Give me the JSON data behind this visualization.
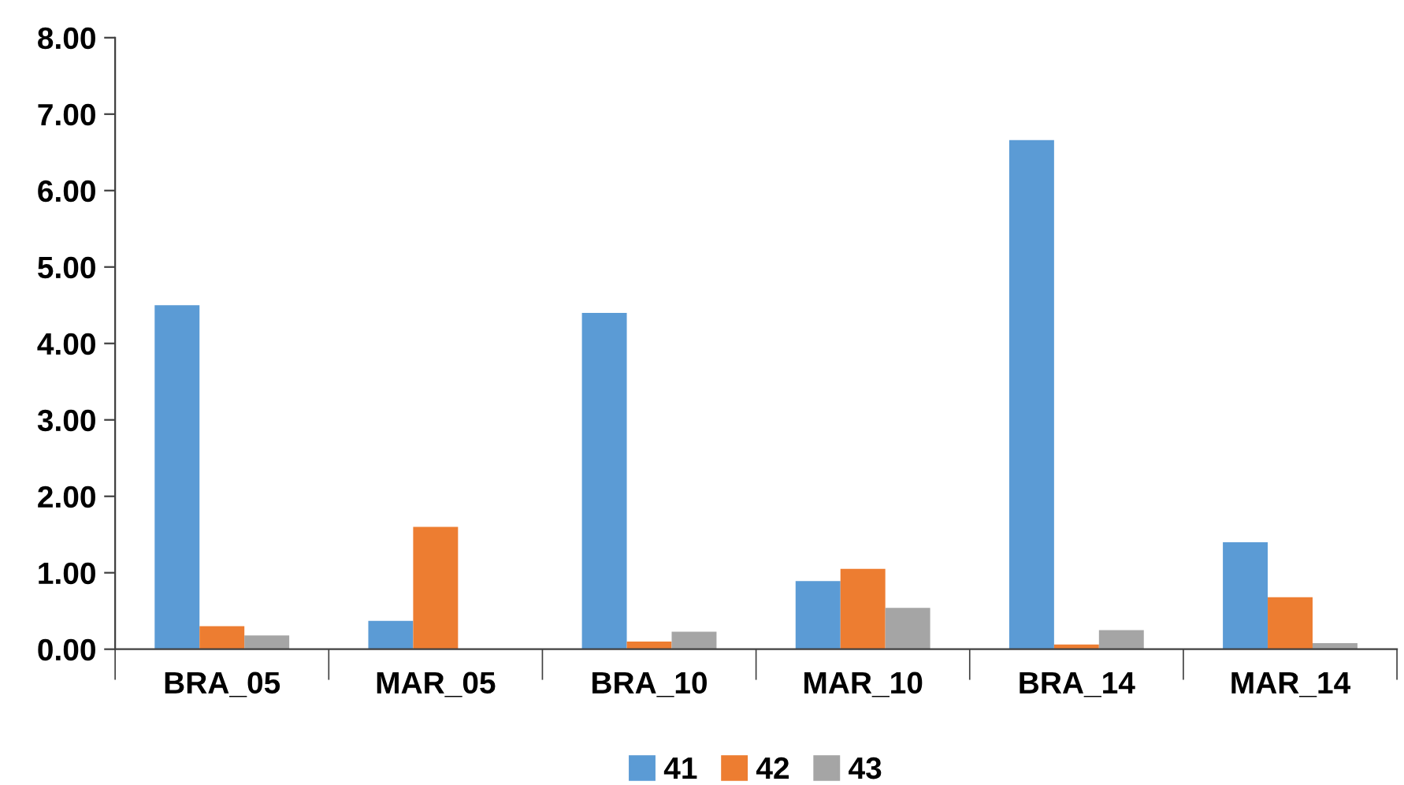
{
  "chart_data": {
    "type": "bar",
    "categories": [
      "BRA_05",
      "MAR_05",
      "BRA_10",
      "MAR_10",
      "BRA_14",
      "MAR_14"
    ],
    "series": [
      {
        "name": "41",
        "color": "#5b9bd5",
        "values": [
          4.5,
          0.37,
          4.4,
          0.89,
          6.66,
          1.4
        ]
      },
      {
        "name": "42",
        "color": "#ed7d31",
        "values": [
          0.3,
          1.6,
          0.1,
          1.05,
          0.06,
          0.68
        ]
      },
      {
        "name": "43",
        "color": "#a5a5a5",
        "values": [
          0.18,
          0,
          0.23,
          0.54,
          0.25,
          0.08
        ]
      }
    ],
    "ylim": [
      0,
      8
    ],
    "yticks": [
      {
        "value": 0,
        "label": "0.00"
      },
      {
        "value": 1,
        "label": "1.00"
      },
      {
        "value": 2,
        "label": "2.00"
      },
      {
        "value": 3,
        "label": "3.00"
      },
      {
        "value": 4,
        "label": "4.00"
      },
      {
        "value": 5,
        "label": "5.00"
      },
      {
        "value": 6,
        "label": "6.00"
      },
      {
        "value": 7,
        "label": "7.00"
      },
      {
        "value": 8,
        "label": "8.00"
      }
    ],
    "grid": false,
    "legend": "bottom"
  }
}
